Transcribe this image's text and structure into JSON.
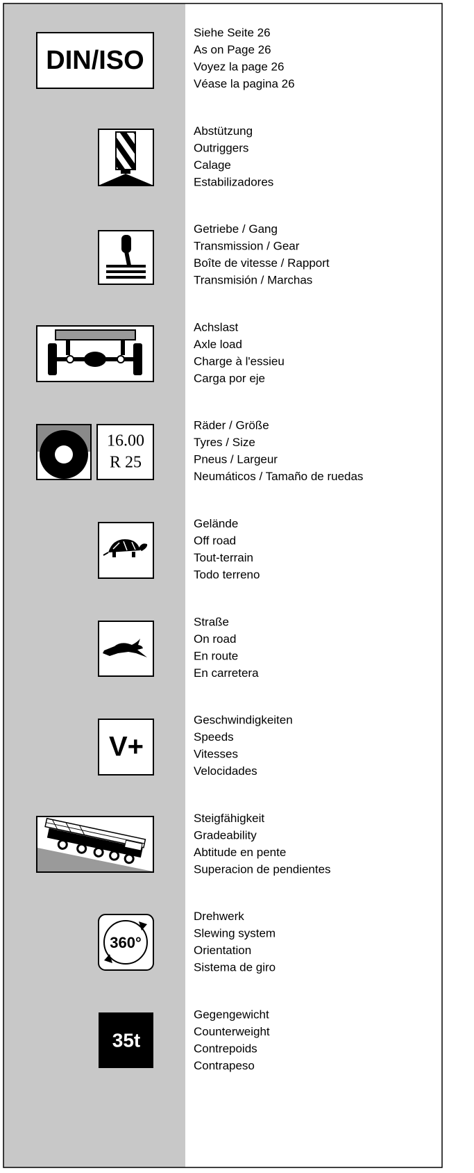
{
  "items": [
    {
      "icon_lines": [
        "DIN/ISO"
      ],
      "lines": [
        "Siehe Seite 26",
        "As on Page 26",
        "Voyez la page 26",
        "Véase la pagina 26"
      ]
    },
    {
      "lines": [
        "Abstützung",
        "Outriggers",
        "Calage",
        "Estabilizadores"
      ]
    },
    {
      "lines": [
        "Getriebe / Gang",
        "Transmission / Gear",
        "Boîte de vitesse / Rapport",
        "Transmisión / Marchas"
      ]
    },
    {
      "lines": [
        "Achslast",
        "Axle load",
        "Charge à l'essieu",
        "Carga por eje"
      ]
    },
    {
      "icon_lines": [
        "16.00",
        "R 25"
      ],
      "lines": [
        "Räder / Größe",
        "Tyres / Size",
        "Pneus / Largeur",
        "Neumáticos / Tamaño de ruedas"
      ]
    },
    {
      "lines": [
        "Gelände",
        "Off road",
        "Tout-terrain",
        "Todo terreno"
      ]
    },
    {
      "lines": [
        "Straße",
        "On road",
        "En route",
        "En carretera"
      ]
    },
    {
      "icon_lines": [
        "V+"
      ],
      "lines": [
        "Geschwindigkeiten",
        "Speeds",
        "Vitesses",
        "Velocidades"
      ]
    },
    {
      "lines": [
        "Steigfähigkeit",
        "Gradeability",
        "Abtitude en pente",
        "Superacion de pendientes"
      ]
    },
    {
      "icon_lines": [
        "360°"
      ],
      "lines": [
        "Drehwerk",
        "Slewing system",
        "Orientation",
        "Sistema de giro"
      ]
    },
    {
      "icon_lines": [
        "35t"
      ],
      "lines": [
        "Gegengewicht",
        "Counterweight",
        "Contrepoids",
        "Contrapeso"
      ]
    }
  ]
}
